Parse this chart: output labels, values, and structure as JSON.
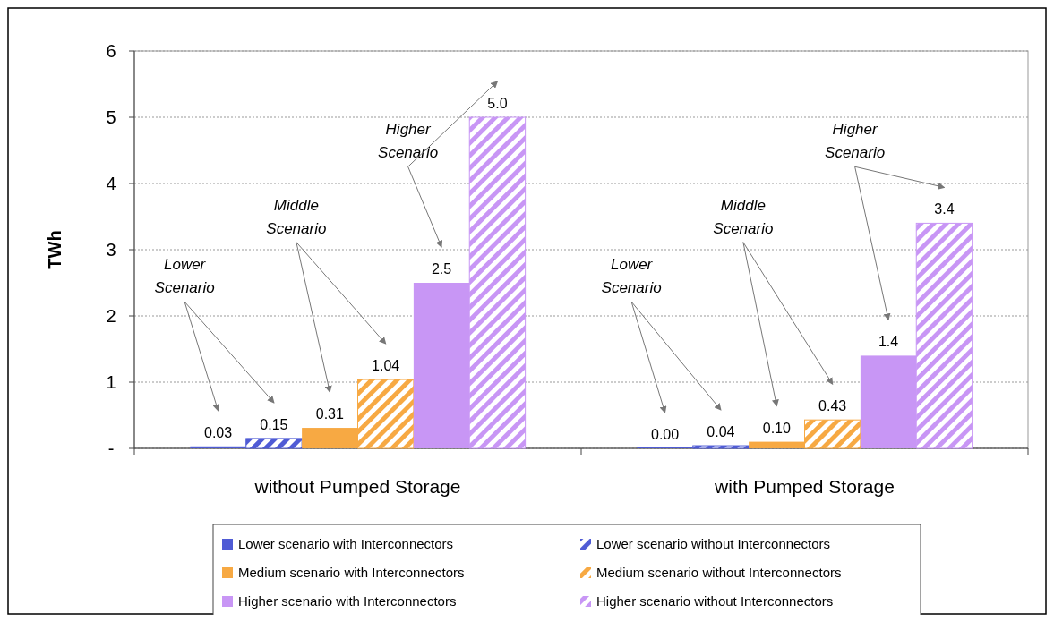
{
  "chart_data": {
    "type": "bar",
    "ylabel": "TWh",
    "categories": [
      "without Pumped Storage",
      "with Pumped Storage"
    ],
    "series": [
      {
        "name": "Lower scenario with Interconnectors",
        "color": "#4f5bd5",
        "values": [
          0.03,
          0.0
        ],
        "value_labels": [
          "0.03",
          "0.00"
        ]
      },
      {
        "name": "Lower scenario without Interconnectors",
        "color": "#4f5bd5",
        "values": [
          0.15,
          0.04
        ],
        "value_labels": [
          "0.15",
          "0.04"
        ]
      },
      {
        "name": "Medium scenario with Interconnectors",
        "color": "#f7a943",
        "values": [
          0.31,
          0.1
        ],
        "value_labels": [
          "0.31",
          "0.10"
        ]
      },
      {
        "name": "Medium scenario without Interconnectors",
        "color": "#f7a943",
        "values": [
          1.04,
          0.43
        ],
        "value_labels": [
          "1.04",
          "0.43"
        ]
      },
      {
        "name": "Higher scenario with Interconnectors",
        "color": "#c896f5",
        "values": [
          2.5,
          1.4
        ],
        "value_labels": [
          "2.5",
          "1.4"
        ]
      },
      {
        "name": "Higher scenario without Interconnectors",
        "color": "#c896f5",
        "values": [
          5.0,
          3.4
        ],
        "value_labels": [
          "5.0",
          "3.4"
        ]
      }
    ],
    "ylim": [
      0,
      6
    ],
    "yticks": [
      {
        "value": 0,
        "label": "-"
      },
      1,
      2,
      3,
      4,
      5,
      6
    ],
    "grid": "y",
    "legend": "bottom",
    "annotations": [
      "Lower Scenario",
      "Middle Scenario",
      "Higher Scenario",
      "Lower Scenario",
      "Middle Scenario",
      "Higher Scenario"
    ]
  }
}
